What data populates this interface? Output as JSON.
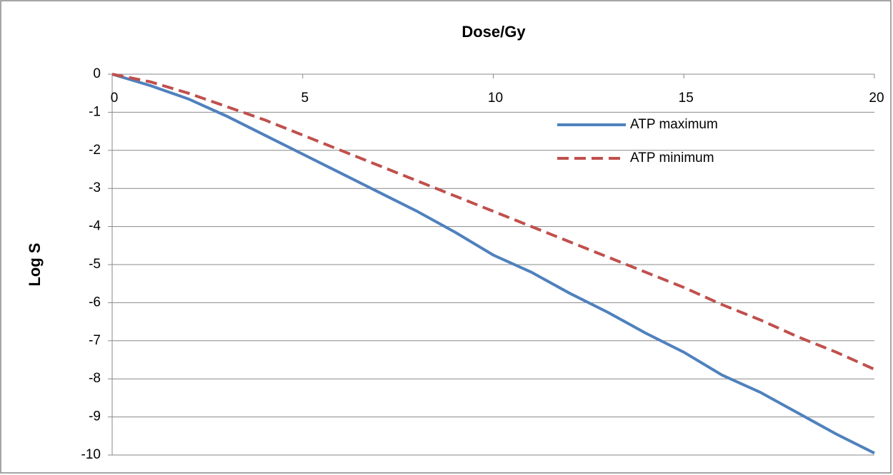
{
  "chart_data": {
    "type": "line",
    "x_label": "Dose/Gy",
    "y_label": "Log S",
    "x": [
      0,
      1,
      2,
      3,
      4,
      5,
      6,
      7,
      8,
      9,
      10,
      11,
      12,
      13,
      14,
      15,
      16,
      17,
      18,
      19,
      20
    ],
    "series": [
      {
        "name": "ATP maximum",
        "color": "#4f81bd",
        "dash": "solid",
        "values": [
          0,
          -0.3,
          -0.65,
          -1.1,
          -1.6,
          -2.1,
          -2.6,
          -3.1,
          -3.6,
          -4.15,
          -4.75,
          -5.2,
          -5.75,
          -6.25,
          -6.8,
          -7.3,
          -7.9,
          -8.35,
          -8.9,
          -9.45,
          -9.95
        ]
      },
      {
        "name": "ATP minimum",
        "color": "#c0504d",
        "dash": "dashed",
        "values": [
          0,
          -0.2,
          -0.5,
          -0.85,
          -1.2,
          -1.6,
          -2.0,
          -2.4,
          -2.8,
          -3.2,
          -3.6,
          -4.0,
          -4.4,
          -4.8,
          -5.2,
          -5.6,
          -6.05,
          -6.45,
          -6.9,
          -7.3,
          -7.75
        ]
      }
    ],
    "xlim": [
      0,
      20
    ],
    "xticks": [
      0,
      5,
      10,
      15,
      20
    ],
    "ylim": [
      -10,
      0
    ],
    "yticks": [
      0,
      -1,
      -2,
      -3,
      -4,
      -5,
      -6,
      -7,
      -8,
      -9,
      -10
    ],
    "grid": true,
    "legend": "upper right"
  }
}
